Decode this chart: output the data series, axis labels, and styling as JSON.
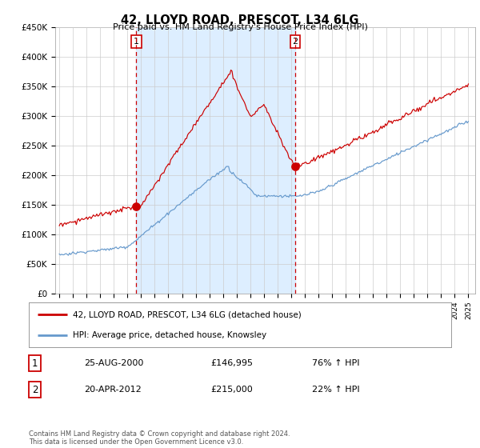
{
  "title": "42, LLOYD ROAD, PRESCOT, L34 6LG",
  "subtitle": "Price paid vs. HM Land Registry's House Price Index (HPI)",
  "ylabel_ticks": [
    "£0",
    "£50K",
    "£100K",
    "£150K",
    "£200K",
    "£250K",
    "£300K",
    "£350K",
    "£400K",
    "£450K"
  ],
  "ylim": [
    0,
    450000
  ],
  "xlim_start": 1994.7,
  "xlim_end": 2025.5,
  "sale1_date": 2000.647,
  "sale1_price": 146995,
  "sale2_date": 2012.305,
  "sale2_price": 215000,
  "legend_red_label": "42, LLOYD ROAD, PRESCOT, L34 6LG (detached house)",
  "legend_blue_label": "HPI: Average price, detached house, Knowsley",
  "table_row1": [
    "1",
    "25-AUG-2000",
    "£146,995",
    "76% ↑ HPI"
  ],
  "table_row2": [
    "2",
    "20-APR-2012",
    "£215,000",
    "22% ↑ HPI"
  ],
  "footer": "Contains HM Land Registry data © Crown copyright and database right 2024.\nThis data is licensed under the Open Government Licence v3.0.",
  "red_color": "#cc0000",
  "blue_color": "#6699cc",
  "shade_color": "#ddeeff",
  "background_color": "#ffffff",
  "grid_color": "#cccccc"
}
